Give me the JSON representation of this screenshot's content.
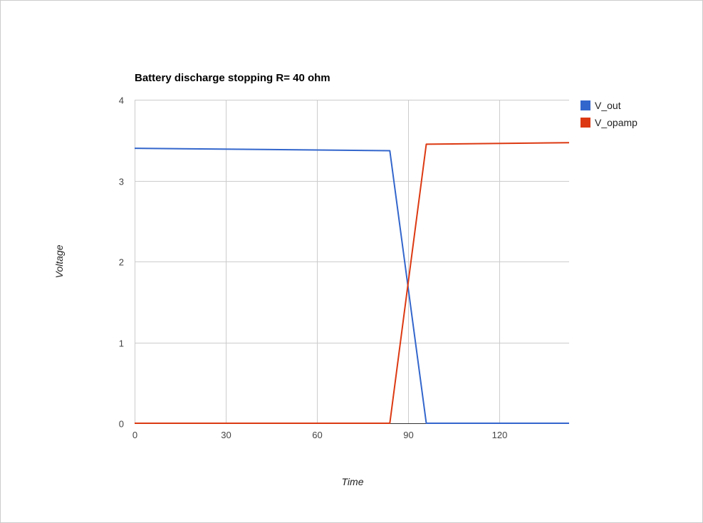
{
  "chart_data": {
    "type": "line",
    "title": "Battery discharge stopping R= 40 ohm",
    "xlabel": "Time",
    "ylabel": "Voltage",
    "xlim": [
      0,
      143
    ],
    "ylim": [
      0,
      4
    ],
    "xticks": [
      0,
      30,
      60,
      90,
      120
    ],
    "yticks": [
      0,
      1,
      2,
      3,
      4
    ],
    "grid": true,
    "legend_position": "right",
    "series": [
      {
        "name": "V_out",
        "color": "#3366cc",
        "x": [
          0,
          84,
          96,
          143
        ],
        "y": [
          3.4,
          3.37,
          0,
          0
        ]
      },
      {
        "name": "V_opamp",
        "color": "#dc3912",
        "x": [
          0,
          84,
          96,
          143
        ],
        "y": [
          0,
          0,
          3.45,
          3.47
        ]
      }
    ]
  }
}
